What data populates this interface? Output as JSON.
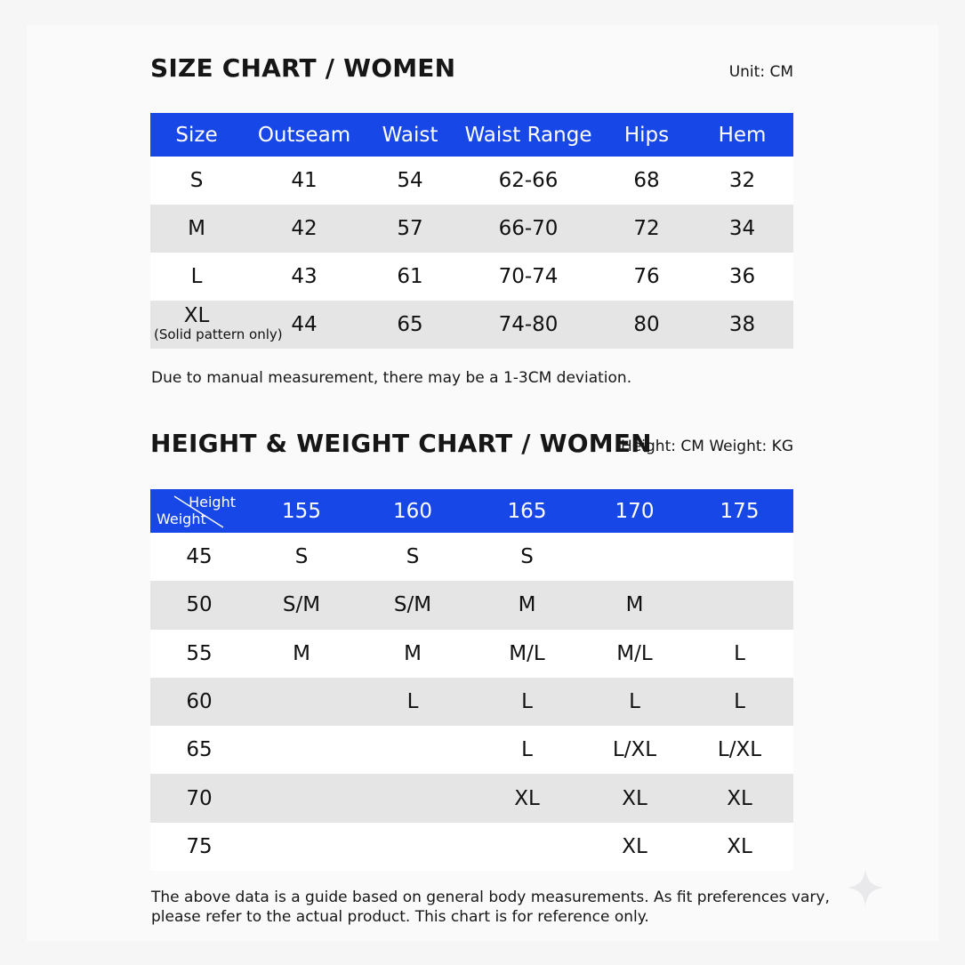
{
  "size_chart": {
    "title": "SIZE CHART / WOMEN",
    "unit": "Unit: CM",
    "headers": [
      "Size",
      "Outseam",
      "Waist",
      "Waist Range",
      "Hips",
      "Hem"
    ],
    "rows": [
      [
        "S",
        "41",
        "54",
        "62-66",
        "68",
        "32"
      ],
      [
        "M",
        "42",
        "57",
        "66-70",
        "72",
        "34"
      ],
      [
        "L",
        "43",
        "61",
        "70-74",
        "76",
        "36"
      ],
      [
        "XL",
        "44",
        "65",
        "74-80",
        "80",
        "38"
      ]
    ],
    "xl_note": "(Solid pattern only)",
    "footnote": "Due to manual measurement, there may be a 1-3CM deviation."
  },
  "hw_chart": {
    "title": "HEIGHT & WEIGHT CHART / WOMEN",
    "unit": "Height: CM  Weight: KG",
    "corner_height": "Height",
    "corner_weight": "Weight",
    "heights": [
      "155",
      "160",
      "165",
      "170",
      "175"
    ],
    "rows": [
      [
        "45",
        "S",
        "S",
        "S",
        "",
        ""
      ],
      [
        "50",
        "S/M",
        "S/M",
        "M",
        "M",
        ""
      ],
      [
        "55",
        "M",
        "M",
        "M/L",
        "M/L",
        "L"
      ],
      [
        "60",
        "",
        "L",
        "L",
        "L",
        "L"
      ],
      [
        "65",
        "",
        "",
        "L",
        "L/XL",
        "L/XL"
      ],
      [
        "70",
        "",
        "",
        "XL",
        "XL",
        "XL"
      ],
      [
        "75",
        "",
        "",
        "",
        "XL",
        "XL"
      ]
    ],
    "footnote_line1": "The above data is a guide based on general body measurements. As fit preferences vary,",
    "footnote_line2": "please refer to the actual product. This chart is for reference only."
  },
  "colors": {
    "header_blue": "#1747e6",
    "row_gray": "#e5e5e6",
    "row_white": "#ffffff"
  },
  "icons": [
    "sparkle-icon"
  ]
}
